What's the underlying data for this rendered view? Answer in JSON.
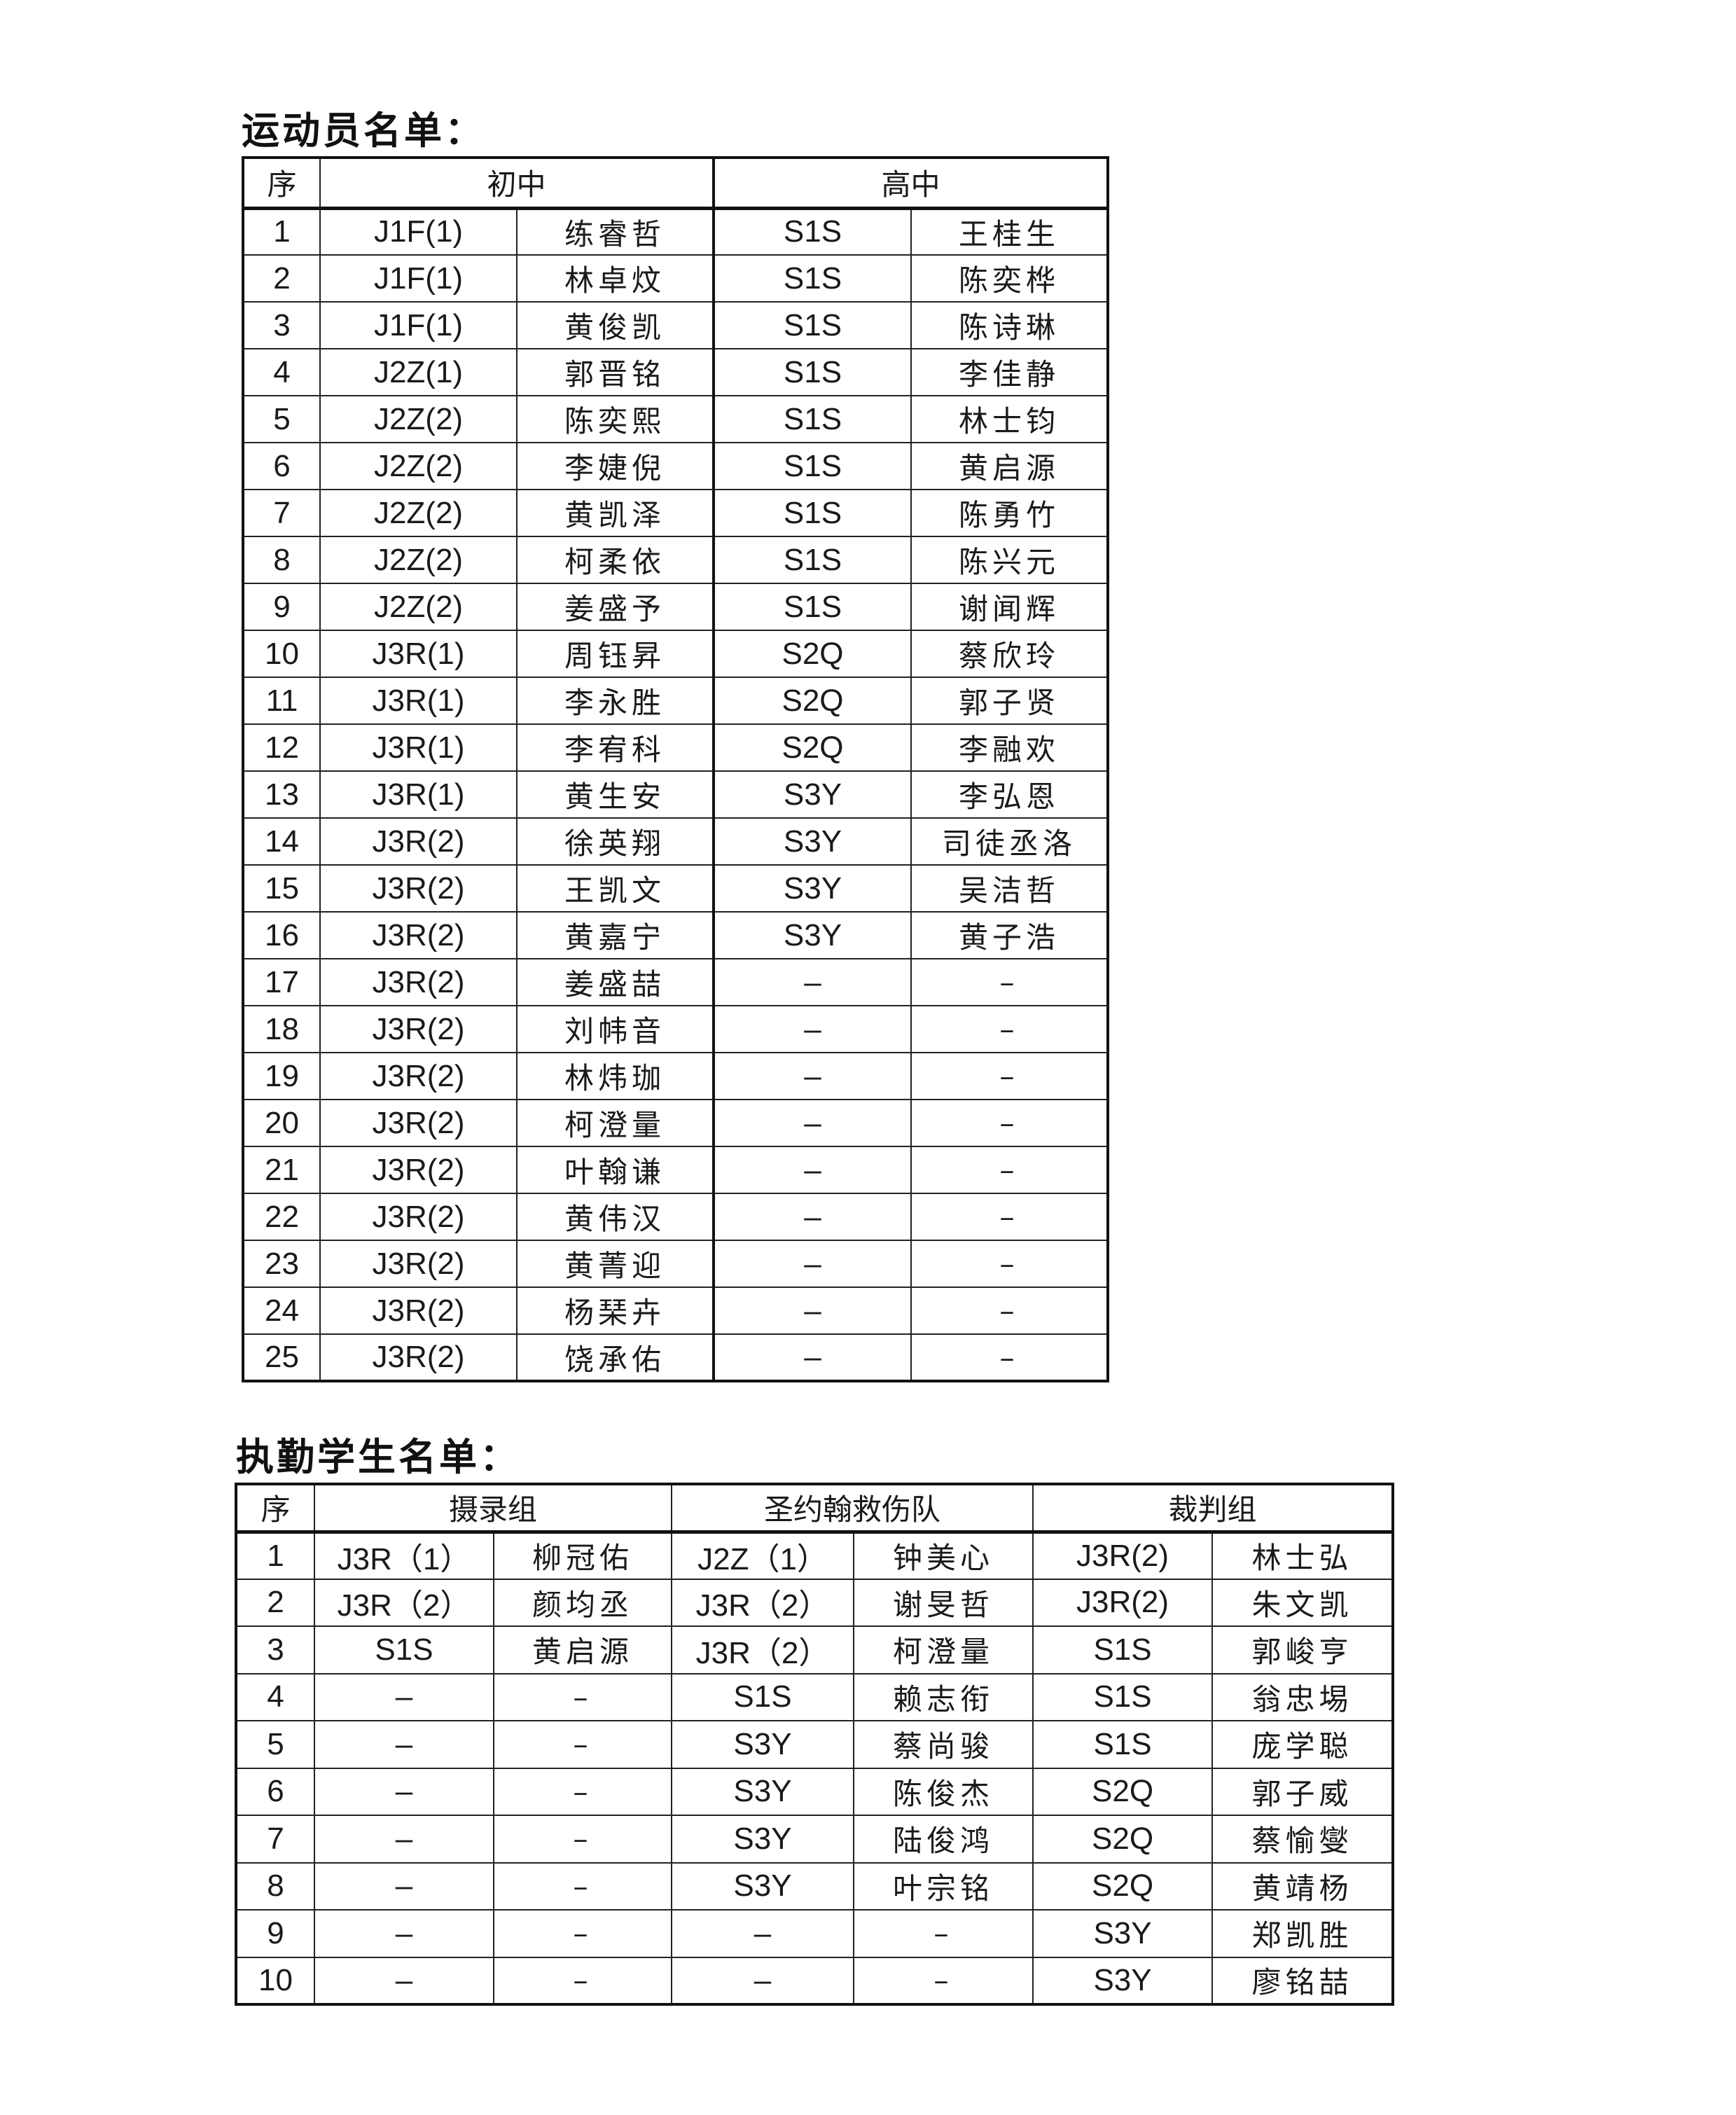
{
  "athletes": {
    "title": "运动员名单：",
    "headers": {
      "seq": "序",
      "junior": "初中",
      "senior": "高中"
    },
    "rows": [
      [
        "1",
        "J1F(1)",
        "练睿哲",
        "S1S",
        "王桂生"
      ],
      [
        "2",
        "J1F(1)",
        "林卓炆",
        "S1S",
        "陈奕桦"
      ],
      [
        "3",
        "J1F(1)",
        "黄俊凯",
        "S1S",
        "陈诗琳"
      ],
      [
        "4",
        "J2Z(1)",
        "郭晋铭",
        "S1S",
        "李佳静"
      ],
      [
        "5",
        "J2Z(2)",
        "陈奕熙",
        "S1S",
        "林士钧"
      ],
      [
        "6",
        "J2Z(2)",
        "李婕倪",
        "S1S",
        "黄启源"
      ],
      [
        "7",
        "J2Z(2)",
        "黄凯泽",
        "S1S",
        "陈勇竹"
      ],
      [
        "8",
        "J2Z(2)",
        "柯柔依",
        "S1S",
        "陈兴元"
      ],
      [
        "9",
        "J2Z(2)",
        "姜盛予",
        "S1S",
        "谢闻辉"
      ],
      [
        "10",
        "J3R(1)",
        "周钰昇",
        "S2Q",
        "蔡欣玲"
      ],
      [
        "11",
        "J3R(1)",
        "李永胜",
        "S2Q",
        "郭子贤"
      ],
      [
        "12",
        "J3R(1)",
        "李宥科",
        "S2Q",
        "李融欢"
      ],
      [
        "13",
        "J3R(1)",
        "黄生安",
        "S3Y",
        "李弘恩"
      ],
      [
        "14",
        "J3R(2)",
        "徐英翔",
        "S3Y",
        "司徒丞洛"
      ],
      [
        "15",
        "J3R(2)",
        "王凯文",
        "S3Y",
        "吴洁哲"
      ],
      [
        "16",
        "J3R(2)",
        "黄嘉宁",
        "S3Y",
        "黄子浩"
      ],
      [
        "17",
        "J3R(2)",
        "姜盛喆",
        "–",
        "–"
      ],
      [
        "18",
        "J3R(2)",
        "刘帏音",
        "–",
        "–"
      ],
      [
        "19",
        "J3R(2)",
        "林炜珈",
        "–",
        "–"
      ],
      [
        "20",
        "J3R(2)",
        "柯澄量",
        "–",
        "–"
      ],
      [
        "21",
        "J3R(2)",
        "叶翰谦",
        "–",
        "–"
      ],
      [
        "22",
        "J3R(2)",
        "黄伟汉",
        "–",
        "–"
      ],
      [
        "23",
        "J3R(2)",
        "黄菁迎",
        "–",
        "–"
      ],
      [
        "24",
        "J3R(2)",
        "杨琹卉",
        "–",
        "–"
      ],
      [
        "25",
        "J3R(2)",
        "饶承佑",
        "–",
        "–"
      ]
    ]
  },
  "duty": {
    "title": "执勤学生名单：",
    "headers": {
      "seq": "序",
      "photo": "摄录组",
      "ambulance": "圣约翰救伤队",
      "referee": "裁判组"
    },
    "rows": [
      [
        "1",
        "J3R（1）",
        "柳冠佑",
        "J2Z（1）",
        "钟美心",
        "J3R(2)",
        "林士弘"
      ],
      [
        "2",
        "J3R（2）",
        "颜均丞",
        "J3R（2）",
        "谢旻哲",
        "J3R(2)",
        "朱文凯"
      ],
      [
        "3",
        "S1S",
        "黄启源",
        "J3R（2）",
        "柯澄量",
        "S1S",
        "郭峻亨"
      ],
      [
        "4",
        "–",
        "–",
        "S1S",
        "赖志衔",
        "S1S",
        "翁忠埸"
      ],
      [
        "5",
        "–",
        "–",
        "S3Y",
        "蔡尚骏",
        "S1S",
        "庞学聪"
      ],
      [
        "6",
        "–",
        "–",
        "S3Y",
        "陈俊杰",
        "S2Q",
        "郭子威"
      ],
      [
        "7",
        "–",
        "–",
        "S3Y",
        "陆俊鸿",
        "S2Q",
        "蔡愉燮"
      ],
      [
        "8",
        "–",
        "–",
        "S3Y",
        "叶宗铭",
        "S2Q",
        "黄靖杨"
      ],
      [
        "9",
        "–",
        "–",
        "–",
        "–",
        "S3Y",
        "郑凯胜"
      ],
      [
        "10",
        "–",
        "–",
        "–",
        "–",
        "S3Y",
        "廖铭喆"
      ]
    ]
  }
}
